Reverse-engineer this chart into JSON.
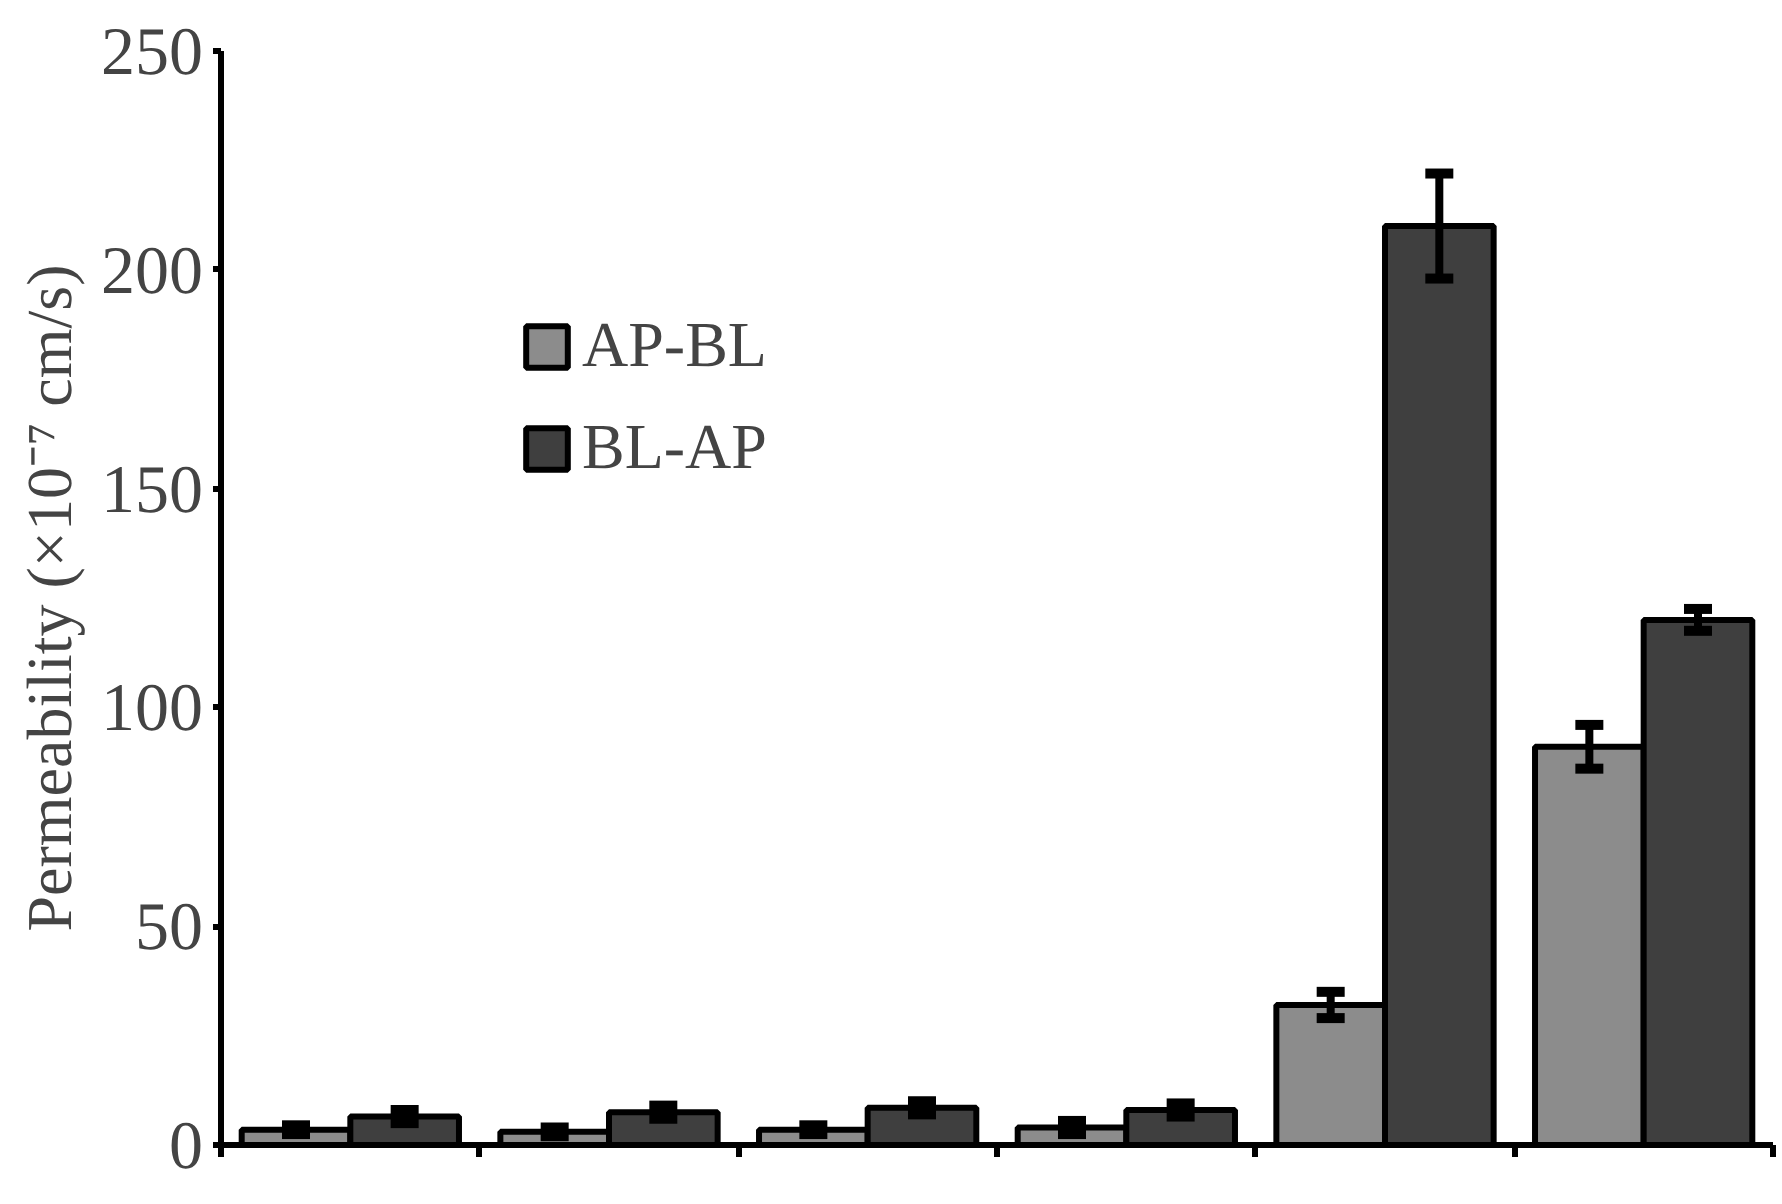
{
  "chart_data": {
    "type": "bar",
    "ylabel": "Permeability (×10⁻⁷ cm/s)",
    "categories": [
      null,
      null,
      null,
      null,
      null,
      null
    ],
    "series": [
      {
        "name": "AP-BL",
        "color": "#8c8c8c",
        "values": [
          3.5,
          3,
          3.5,
          4,
          32,
          91
        ],
        "errors": [
          1,
          1,
          1,
          1.5,
          3,
          5
        ]
      },
      {
        "name": "BL-AP",
        "color": "#3f3f3f",
        "values": [
          6.5,
          7.5,
          8.5,
          8,
          210,
          120
        ],
        "errors": [
          1.5,
          1.5,
          1.5,
          1.5,
          12,
          2.5
        ]
      }
    ],
    "ylim": [
      0,
      250
    ],
    "yticks": [
      0,
      50,
      100,
      150,
      200,
      250
    ],
    "tick_labels": "y",
    "grid": false,
    "legend": "top left"
  }
}
